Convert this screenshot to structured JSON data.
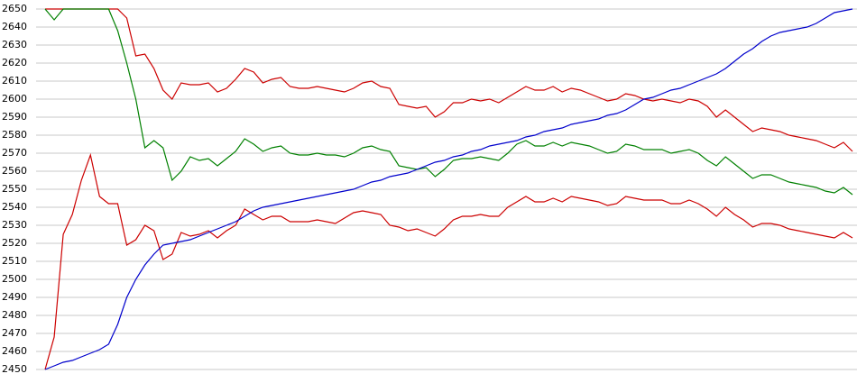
{
  "chart_data": {
    "type": "line",
    "ylim": [
      2450,
      2650
    ],
    "yticks": [
      2450,
      2460,
      2470,
      2480,
      2490,
      2500,
      2510,
      2520,
      2530,
      2540,
      2550,
      2560,
      2570,
      2580,
      2590,
      2600,
      2610,
      2620,
      2630,
      2640,
      2650
    ],
    "grid": true,
    "series": [
      {
        "color": "#cc0000",
        "values": [
          2650,
          2650,
          2650,
          2650,
          2650,
          2650,
          2650,
          2650,
          2650,
          2645,
          2624,
          2625,
          2617,
          2605,
          2600,
          2609,
          2608,
          2608,
          2609,
          2604,
          2606,
          2611,
          2617,
          2615,
          2609,
          2611,
          2612,
          2607,
          2606,
          2606,
          2607,
          2606,
          2605,
          2604,
          2606,
          2609,
          2610,
          2607,
          2606,
          2597,
          2596,
          2595,
          2596,
          2590,
          2593,
          2598,
          2598,
          2600,
          2599,
          2600,
          2598,
          2601,
          2604,
          2607,
          2605,
          2605,
          2607,
          2604,
          2606,
          2605,
          2603,
          2601,
          2599,
          2600,
          2603,
          2602,
          2600,
          2599,
          2600,
          2599,
          2598,
          2600,
          2599,
          2596,
          2590,
          2594,
          2590,
          2586,
          2582,
          2584,
          2583,
          2582,
          2580,
          2579,
          2578,
          2577,
          2575,
          2573,
          2576,
          2571
        ]
      },
      {
        "color": "#008000",
        "values": [
          2650,
          2644,
          2650,
          2650,
          2650,
          2650,
          2650,
          2650,
          2638,
          2620,
          2600,
          2573,
          2577,
          2573,
          2555,
          2560,
          2568,
          2566,
          2567,
          2563,
          2567,
          2571,
          2578,
          2575,
          2571,
          2573,
          2574,
          2570,
          2569,
          2569,
          2570,
          2569,
          2569,
          2568,
          2570,
          2573,
          2574,
          2572,
          2571,
          2563,
          2562,
          2561,
          2562,
          2557,
          2561,
          2566,
          2567,
          2567,
          2568,
          2567,
          2566,
          2570,
          2575,
          2577,
          2574,
          2574,
          2576,
          2574,
          2576,
          2575,
          2574,
          2572,
          2570,
          2571,
          2575,
          2574,
          2572,
          2572,
          2572,
          2570,
          2571,
          2572,
          2570,
          2566,
          2563,
          2568,
          2564,
          2560,
          2556,
          2558,
          2558,
          2556,
          2554,
          2553,
          2552,
          2551,
          2549,
          2548,
          2551,
          2547
        ]
      },
      {
        "color": "#cc0000",
        "values": [
          2450,
          2468,
          2525,
          2536,
          2555,
          2569,
          2546,
          2542,
          2542,
          2519,
          2522,
          2530,
          2527,
          2511,
          2514,
          2526,
          2524,
          2525,
          2527,
          2523,
          2527,
          2530,
          2539,
          2536,
          2533,
          2535,
          2535,
          2532,
          2532,
          2532,
          2533,
          2532,
          2531,
          2534,
          2537,
          2538,
          2537,
          2536,
          2530,
          2529,
          2527,
          2528,
          2526,
          2524,
          2528,
          2533,
          2535,
          2535,
          2536,
          2535,
          2535,
          2540,
          2543,
          2546,
          2543,
          2543,
          2545,
          2543,
          2546,
          2545,
          2544,
          2543,
          2541,
          2542,
          2546,
          2545,
          2544,
          2544,
          2544,
          2542,
          2542,
          2544,
          2542,
          2539,
          2535,
          2540,
          2536,
          2533,
          2529,
          2531,
          2531,
          2530,
          2528,
          2527,
          2526,
          2525,
          2524,
          2523,
          2526,
          2523
        ]
      },
      {
        "color": "#0000cc",
        "values": [
          2450,
          2452,
          2454,
          2455,
          2457,
          2459,
          2461,
          2464,
          2475,
          2490,
          2500,
          2508,
          2514,
          2519,
          2520,
          2521,
          2522,
          2524,
          2526,
          2528,
          2530,
          2532,
          2535,
          2538,
          2540,
          2541,
          2542,
          2543,
          2544,
          2545,
          2546,
          2547,
          2548,
          2549,
          2550,
          2552,
          2554,
          2555,
          2557,
          2558,
          2559,
          2561,
          2563,
          2565,
          2566,
          2568,
          2569,
          2571,
          2572,
          2574,
          2575,
          2576,
          2577,
          2579,
          2580,
          2582,
          2583,
          2584,
          2586,
          2587,
          2588,
          2589,
          2591,
          2592,
          2594,
          2597,
          2600,
          2601,
          2603,
          2605,
          2606,
          2608,
          2610,
          2612,
          2614,
          2617,
          2621,
          2625,
          2628,
          2632,
          2635,
          2637,
          2638,
          2639,
          2640,
          2642,
          2645,
          2648,
          2649,
          2650
        ]
      }
    ]
  }
}
